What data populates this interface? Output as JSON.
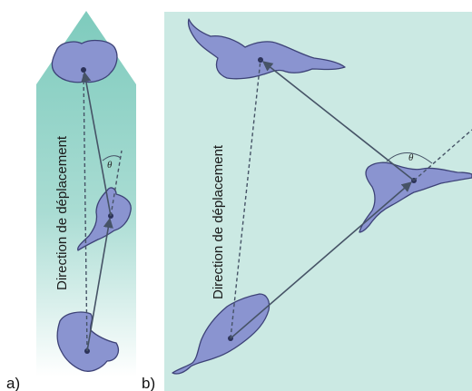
{
  "figure": {
    "panel_a": {
      "label": "a)",
      "direction_text": "Direction de déplacement",
      "angle_symbol": "θ"
    },
    "panel_b": {
      "label": "b)",
      "direction_text": "Direction de déplacement",
      "angle_symbol": "θ"
    },
    "colors": {
      "arrow_fill": "#a7dcd3",
      "panel_b_background": "#cbe9e3",
      "cell_fill": "#8a94d0",
      "cell_stroke": "#3d4277",
      "vector": "#465366"
    }
  }
}
